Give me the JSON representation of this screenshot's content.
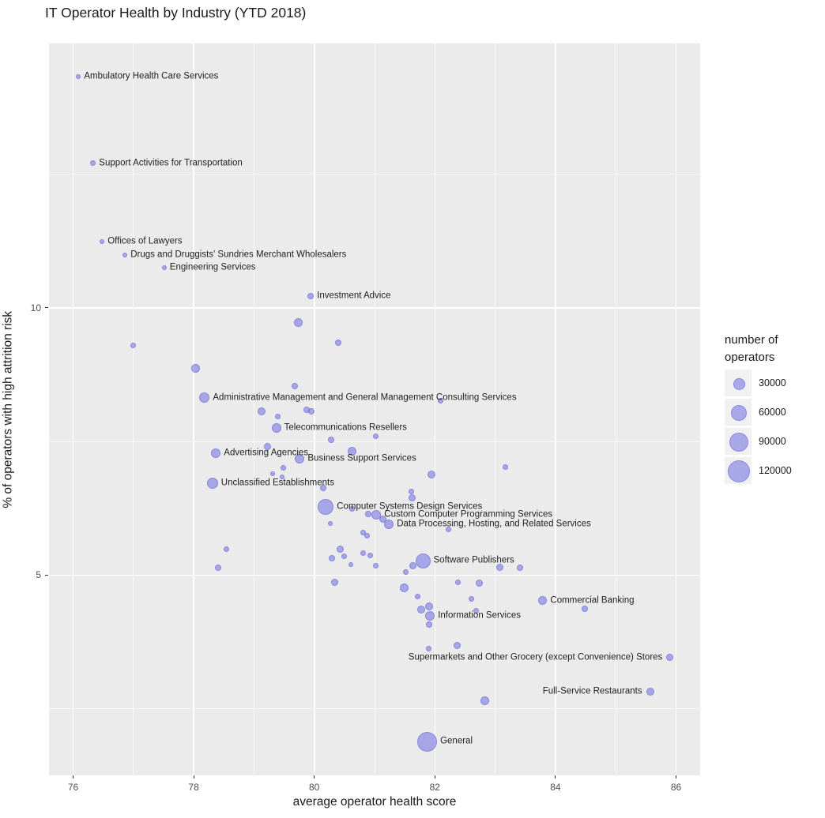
{
  "title": "IT Operator Health by Industry (YTD 2018)",
  "colors": {
    "panel_bg": "#ebebeb",
    "grid_major": "#ffffff",
    "grid_minor": "#ffffff",
    "bubble_fill": "rgba(110,110,225,0.55)",
    "bubble_border": "rgba(95,95,210,0.45)",
    "tick_text": "#4d4d4d",
    "tick_mark": "#333333",
    "label_text": "#1f1f1f",
    "legend_key_bg": "#f1f1f1"
  },
  "chart_data": {
    "type": "scatter",
    "title": "IT Operator Health by Industry (YTD 2018)",
    "xlabel": "average operator health score",
    "ylabel": "% of operators with high attrition risk",
    "xlim": [
      75.6,
      86.4
    ],
    "ylim": [
      1.25,
      14.95
    ],
    "x_ticks": [
      76,
      78,
      80,
      82,
      84,
      86
    ],
    "y_ticks": [
      5,
      10
    ],
    "x_minor": [
      77,
      79,
      81,
      83,
      85
    ],
    "y_minor": [
      2.5,
      7.5,
      12.5
    ],
    "grid": true,
    "legend_position": "right",
    "size_legend": {
      "title": "number of\noperators",
      "values": [
        30000,
        60000,
        90000,
        120000
      ],
      "labels": [
        "30000",
        "60000",
        "90000",
        "120000"
      ]
    },
    "points": [
      {
        "x": 76.09,
        "y": 14.33,
        "n": 6500,
        "label": "Ambulatory Health Care Services"
      },
      {
        "x": 76.33,
        "y": 12.71,
        "n": 9000,
        "label": "Support Activities for Transportation"
      },
      {
        "x": 76.48,
        "y": 11.24,
        "n": 6500,
        "label": "Offices of Lawyers"
      },
      {
        "x": 76.86,
        "y": 10.99,
        "n": 6500,
        "label": "Drugs and Druggists' Sundries Merchant Wholesalers"
      },
      {
        "x": 77.51,
        "y": 10.75,
        "n": 6500,
        "label": "Engineering Services"
      },
      {
        "x": 79.94,
        "y": 10.22,
        "n": 11500,
        "label": "Investment Advice"
      },
      {
        "x": 79.73,
        "y": 9.73,
        "n": 21500
      },
      {
        "x": 80.4,
        "y": 9.35,
        "n": 11500
      },
      {
        "x": 77.0,
        "y": 9.29,
        "n": 9000
      },
      {
        "x": 78.03,
        "y": 8.87,
        "n": 21500
      },
      {
        "x": 79.68,
        "y": 8.54,
        "n": 11500
      },
      {
        "x": 78.18,
        "y": 8.32,
        "n": 30000,
        "label": "Administrative Management and General Management Consulting Services"
      },
      {
        "x": 79.13,
        "y": 8.06,
        "n": 18000
      },
      {
        "x": 79.39,
        "y": 7.97,
        "n": 9000
      },
      {
        "x": 79.87,
        "y": 8.09,
        "n": 11500
      },
      {
        "x": 79.95,
        "y": 8.06,
        "n": 11500
      },
      {
        "x": 82.09,
        "y": 8.26,
        "n": 9000
      },
      {
        "x": 79.37,
        "y": 7.75,
        "n": 25500,
        "label": "Telecommunications Resellers"
      },
      {
        "x": 81.02,
        "y": 7.6,
        "n": 9000
      },
      {
        "x": 80.28,
        "y": 7.53,
        "n": 11500
      },
      {
        "x": 79.23,
        "y": 7.41,
        "n": 14500
      },
      {
        "x": 78.37,
        "y": 7.28,
        "n": 25500,
        "label": "Advertising Agencies"
      },
      {
        "x": 80.62,
        "y": 7.32,
        "n": 21500
      },
      {
        "x": 79.76,
        "y": 7.17,
        "n": 25500,
        "label": "Business Support Services"
      },
      {
        "x": 79.48,
        "y": 7.01,
        "n": 9000
      },
      {
        "x": 79.31,
        "y": 6.89,
        "n": 6500
      },
      {
        "x": 79.46,
        "y": 6.83,
        "n": 6500
      },
      {
        "x": 78.31,
        "y": 6.72,
        "n": 35000,
        "label": "Unclassified Establishments"
      },
      {
        "x": 80.15,
        "y": 6.63,
        "n": 11500
      },
      {
        "x": 81.95,
        "y": 6.88,
        "n": 18000
      },
      {
        "x": 83.17,
        "y": 7.02,
        "n": 9000
      },
      {
        "x": 81.61,
        "y": 6.57,
        "n": 9000
      },
      {
        "x": 81.62,
        "y": 6.45,
        "n": 14500
      },
      {
        "x": 80.19,
        "y": 6.27,
        "n": 71000,
        "label": "Computer Systems Design Services"
      },
      {
        "x": 80.63,
        "y": 6.24,
        "n": 9000
      },
      {
        "x": 80.89,
        "y": 6.14,
        "n": 11500
      },
      {
        "x": 81.03,
        "y": 6.13,
        "n": 25500,
        "label": "Custom Computer Programming Services"
      },
      {
        "x": 81.14,
        "y": 6.04,
        "n": 14500
      },
      {
        "x": 81.24,
        "y": 5.95,
        "n": 25500,
        "label": "Data Processing, Hosting, and Related Services"
      },
      {
        "x": 80.27,
        "y": 5.96,
        "n": 6500
      },
      {
        "x": 80.81,
        "y": 5.8,
        "n": 9000
      },
      {
        "x": 80.88,
        "y": 5.74,
        "n": 9000
      },
      {
        "x": 82.23,
        "y": 5.85,
        "n": 9000
      },
      {
        "x": 80.43,
        "y": 5.49,
        "n": 14500
      },
      {
        "x": 78.54,
        "y": 5.49,
        "n": 9000
      },
      {
        "x": 78.4,
        "y": 5.14,
        "n": 11500
      },
      {
        "x": 80.29,
        "y": 5.32,
        "n": 11500
      },
      {
        "x": 80.49,
        "y": 5.35,
        "n": 9000
      },
      {
        "x": 80.6,
        "y": 5.2,
        "n": 6500
      },
      {
        "x": 80.81,
        "y": 5.41,
        "n": 9000
      },
      {
        "x": 80.93,
        "y": 5.36,
        "n": 9000
      },
      {
        "x": 81.02,
        "y": 5.17,
        "n": 9000
      },
      {
        "x": 81.52,
        "y": 5.05,
        "n": 9000
      },
      {
        "x": 81.63,
        "y": 5.17,
        "n": 14500
      },
      {
        "x": 81.8,
        "y": 5.27,
        "n": 64000,
        "label": "Software Publishers"
      },
      {
        "x": 83.08,
        "y": 5.14,
        "n": 14500
      },
      {
        "x": 83.41,
        "y": 5.14,
        "n": 11500
      },
      {
        "x": 80.34,
        "y": 4.86,
        "n": 14500
      },
      {
        "x": 81.49,
        "y": 4.76,
        "n": 21500
      },
      {
        "x": 82.38,
        "y": 4.87,
        "n": 9000
      },
      {
        "x": 82.74,
        "y": 4.85,
        "n": 14500
      },
      {
        "x": 81.71,
        "y": 4.6,
        "n": 9000
      },
      {
        "x": 82.61,
        "y": 4.55,
        "n": 9000
      },
      {
        "x": 81.77,
        "y": 4.36,
        "n": 18000
      },
      {
        "x": 81.9,
        "y": 4.41,
        "n": 18000
      },
      {
        "x": 81.92,
        "y": 4.24,
        "n": 25500,
        "label": "Information Services"
      },
      {
        "x": 82.69,
        "y": 4.33,
        "n": 9000
      },
      {
        "x": 83.79,
        "y": 4.52,
        "n": 21500,
        "label": "Commercial Banking"
      },
      {
        "x": 84.48,
        "y": 4.37,
        "n": 11500
      },
      {
        "x": 81.9,
        "y": 4.08,
        "n": 11500
      },
      {
        "x": 81.9,
        "y": 3.62,
        "n": 9000
      },
      {
        "x": 82.37,
        "y": 3.68,
        "n": 14500
      },
      {
        "x": 85.9,
        "y": 3.46,
        "n": 14500,
        "label": "Supermarkets and Other Grocery (except Convenience) Stores",
        "label_side": "left"
      },
      {
        "x": 85.57,
        "y": 2.81,
        "n": 18000,
        "label": "Full-Service Restaurants",
        "label_side": "left"
      },
      {
        "x": 82.83,
        "y": 2.65,
        "n": 21500
      },
      {
        "x": 81.87,
        "y": 1.88,
        "n": 115000,
        "label": "General"
      }
    ]
  }
}
